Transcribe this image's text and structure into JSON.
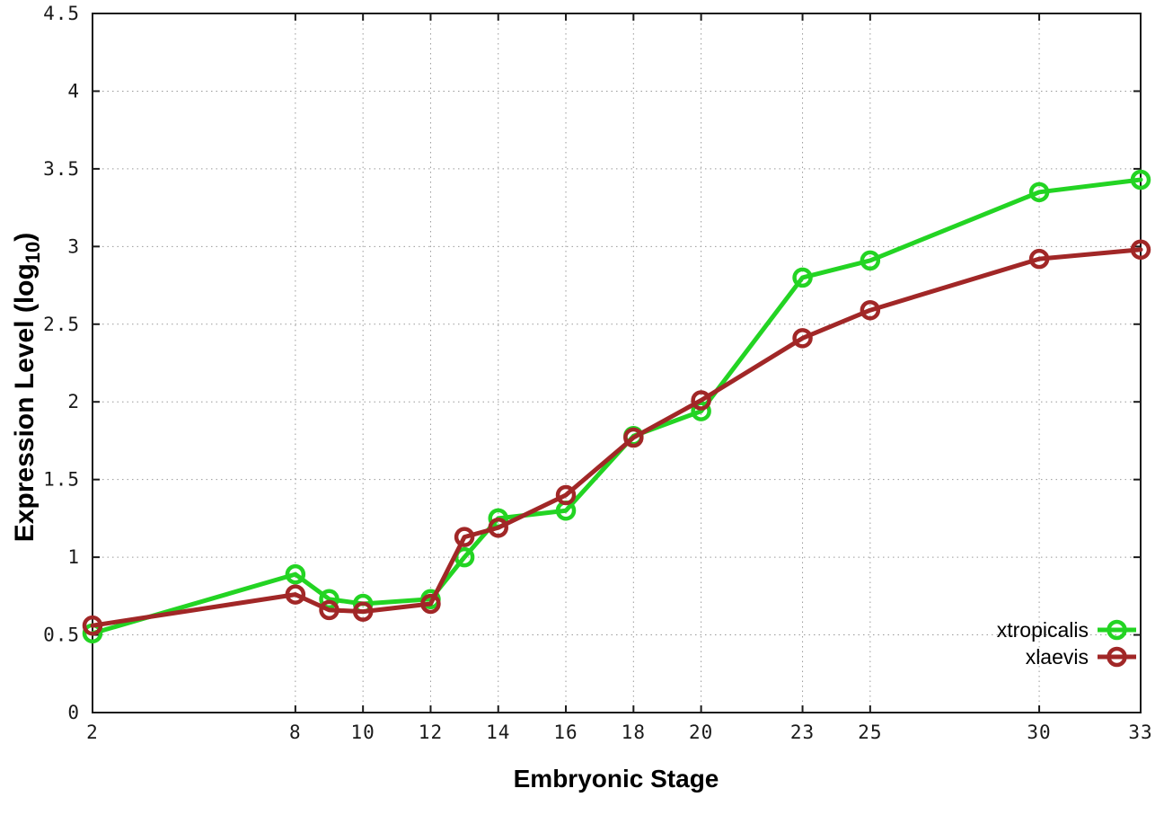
{
  "chart_data": {
    "type": "line",
    "title": "",
    "xlabel": "Embryonic Stage",
    "ylabel": "Expression Level (log10)",
    "ylabel_parts": {
      "prefix": "Expression Level (log",
      "sub": "10",
      "suffix": ")"
    },
    "x": [
      2,
      8,
      9,
      10,
      12,
      13,
      14,
      16,
      18,
      20,
      23,
      25,
      30,
      33
    ],
    "series": [
      {
        "name": "xtropicalis",
        "color": "#23D423",
        "values": [
          0.51,
          0.89,
          0.73,
          0.7,
          0.73,
          1.0,
          1.25,
          1.3,
          1.78,
          1.94,
          2.8,
          2.91,
          3.35,
          3.43
        ]
      },
      {
        "name": "xlaevis",
        "color": "#A12727",
        "values": [
          0.56,
          0.76,
          0.66,
          0.65,
          0.7,
          1.13,
          1.19,
          1.4,
          1.77,
          2.01,
          2.41,
          2.59,
          2.92,
          2.98
        ]
      }
    ],
    "x_ticks": [
      2,
      8,
      10,
      12,
      14,
      16,
      18,
      20,
      23,
      25,
      30,
      33
    ],
    "y_ticks": [
      "0",
      "0.5",
      "1",
      "1.5",
      "2",
      "2.5",
      "3",
      "3.5",
      "4",
      "4.5"
    ],
    "xlim": [
      2,
      33
    ],
    "ylim": [
      0,
      4.5
    ],
    "grid": true,
    "legend_position": "inside-bottom-right",
    "legend": [
      "xtropicalis",
      "xlaevis"
    ]
  },
  "style": {
    "axis_color": "#1a1a1a",
    "grid_color": "#9a9a9a",
    "tick_label_color": "#1a1a1a",
    "legend_text_color": "#000000",
    "background": "#ffffff"
  }
}
